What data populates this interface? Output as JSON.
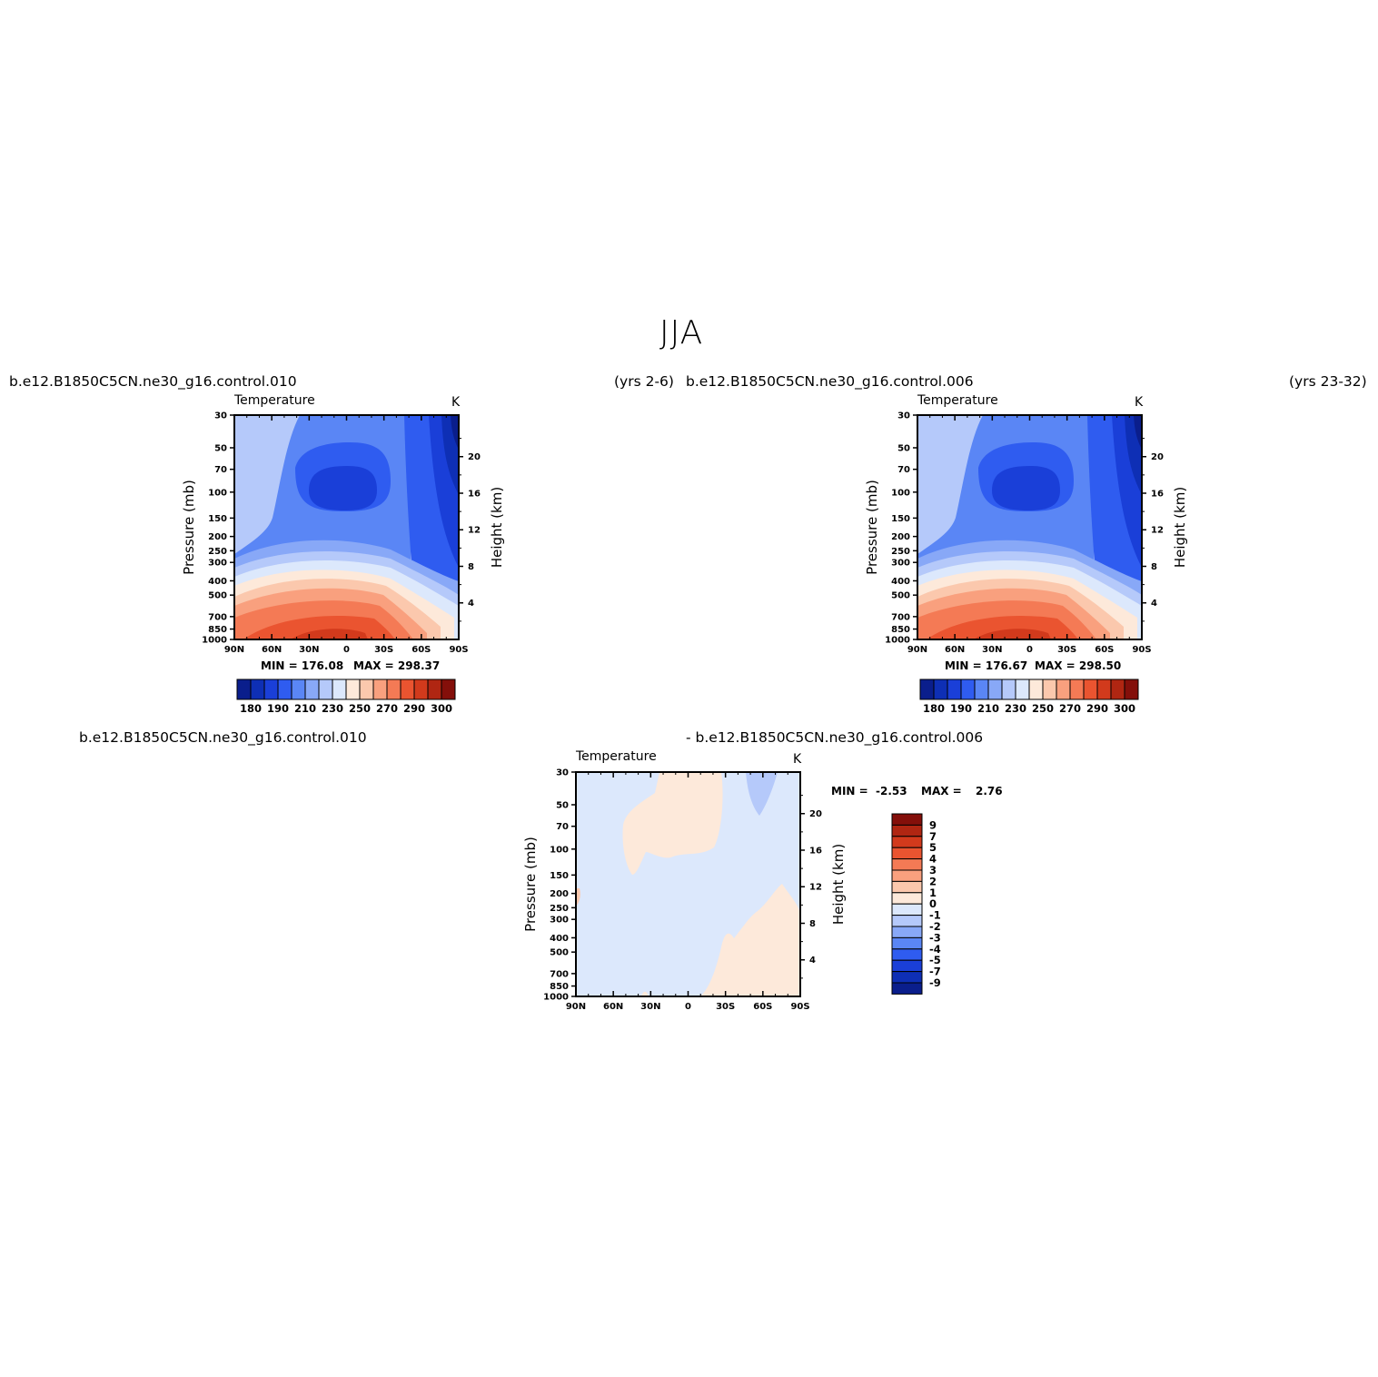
{
  "figure": {
    "title": "JJA",
    "case_top_left": "b.e12.B1850C5CN.ne30_g16.control.010",
    "years_top_left": "(yrs 2-6)",
    "case_top_right": "b.e12.B1850C5CN.ne30_g16.control.006",
    "years_top_right": "(yrs 23-32)",
    "diff_case_a": "b.e12.B1850C5CN.ne30_g16.control.010",
    "diff_case_b": "- b.e12.B1850C5CN.ne30_g16.control.006"
  },
  "chart_data": [
    {
      "type": "contour",
      "panel": "top-left",
      "title": "Temperature",
      "units": "K",
      "ylabel": "Pressure (mb)",
      "ylabel_right": "Height (km)",
      "x_ticks": [
        "90N",
        "60N",
        "30N",
        "0",
        "30S",
        "60S",
        "90S"
      ],
      "y_ticks": [
        30,
        50,
        70,
        100,
        150,
        200,
        250,
        300,
        400,
        500,
        700,
        850,
        1000
      ],
      "y_ticks_right": [
        20,
        16,
        12,
        8,
        4
      ],
      "min_label": "MIN = 176.08",
      "max_label": "MAX = 298.37",
      "min": 176.08,
      "max": 298.37,
      "colorbar_labels": [
        "180",
        "190",
        "210",
        "230",
        "250",
        "270",
        "290",
        "300"
      ]
    },
    {
      "type": "contour",
      "panel": "top-right",
      "title": "Temperature",
      "units": "K",
      "ylabel": "Pressure (mb)",
      "ylabel_right": "Height (km)",
      "x_ticks": [
        "90N",
        "60N",
        "30N",
        "0",
        "30S",
        "60S",
        "90S"
      ],
      "y_ticks": [
        30,
        50,
        70,
        100,
        150,
        200,
        250,
        300,
        400,
        500,
        700,
        850,
        1000
      ],
      "y_ticks_right": [
        20,
        16,
        12,
        8,
        4
      ],
      "min_label": "MIN = 176.67",
      "max_label": "MAX = 298.50",
      "min": 176.67,
      "max": 298.5,
      "colorbar_labels": [
        "180",
        "190",
        "210",
        "230",
        "250",
        "270",
        "290",
        "300"
      ]
    },
    {
      "type": "contour",
      "panel": "difference",
      "title": "Temperature",
      "units": "K",
      "ylabel": "Pressure (mb)",
      "ylabel_right": "Height (km)",
      "x_ticks": [
        "90N",
        "60N",
        "30N",
        "0",
        "30S",
        "60S",
        "90S"
      ],
      "y_ticks": [
        30,
        50,
        70,
        100,
        150,
        200,
        250,
        300,
        400,
        500,
        700,
        850,
        1000
      ],
      "y_ticks_right": [
        20,
        16,
        12,
        8,
        4
      ],
      "min_label": "MIN =",
      "min_value": "-2.53",
      "max_label": "MAX =",
      "max_value": "2.76",
      "min": -2.53,
      "max": 2.76,
      "colorbar_labels": [
        "9",
        "7",
        "5",
        "4",
        "3",
        "2",
        "1",
        "0",
        "-1",
        "-2",
        "-3",
        "-4",
        "-5",
        "-7",
        "-9"
      ]
    }
  ],
  "colors": {
    "abs_scale": [
      "#0a1e8c",
      "#0e2fb5",
      "#1a3fd8",
      "#2f5cf0",
      "#5a86f5",
      "#88a8f7",
      "#b5c9fa",
      "#dce8fc",
      "#fde9da",
      "#fbc8ad",
      "#f9a07e",
      "#f47a55",
      "#ea5430",
      "#d23a1c",
      "#b02612",
      "#840f0a"
    ],
    "diff_scale": [
      "#840f0a",
      "#b02612",
      "#d23a1c",
      "#ea5430",
      "#f47a55",
      "#f9a07e",
      "#fbc8ad",
      "#fde9da",
      "#dce8fc",
      "#b5c9fa",
      "#88a8f7",
      "#5a86f5",
      "#2f5cf0",
      "#1a3fd8",
      "#0e2fb5",
      "#0a1e8c"
    ]
  }
}
